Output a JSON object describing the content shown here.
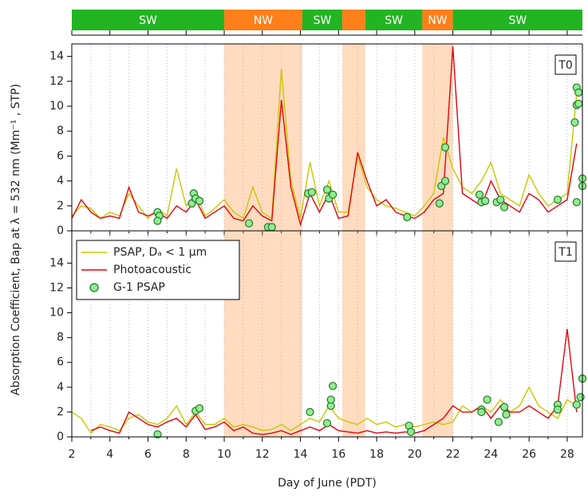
{
  "wind_sectors": {
    "segments": [
      {
        "label": "SW",
        "start": 2,
        "end": 10,
        "color": "#22b422",
        "shaded": false
      },
      {
        "label": "NW",
        "start": 10,
        "end": 14.1,
        "color": "#ff7f1a",
        "shaded": true
      },
      {
        "label": "SW",
        "start": 14.1,
        "end": 16.2,
        "color": "#22b422",
        "shaded": false
      },
      {
        "label": null,
        "start": 16.2,
        "end": 17.4,
        "color": "#ff7f1a",
        "shaded": true
      },
      {
        "label": "SW",
        "start": 17.4,
        "end": 20.4,
        "color": "#22b422",
        "shaded": false
      },
      {
        "label": "NW",
        "start": 20.4,
        "end": 22,
        "color": "#ff7f1a",
        "shaded": true
      },
      {
        "label": "SW",
        "start": 22,
        "end": 28.8,
        "color": "#22b422",
        "shaded": false
      }
    ]
  },
  "y_label": "Absorption Coefficient, Bap at λ = 532 nm (Mm⁻¹ , STP)",
  "x_label": "Day of June (PDT)",
  "chart_data": [
    {
      "type": "line",
      "label": "T0",
      "xlim": [
        2,
        28.8
      ],
      "ylim": [
        0,
        15
      ],
      "xticks": [
        2,
        4,
        6,
        8,
        10,
        12,
        14,
        16,
        18,
        20,
        22,
        24,
        26,
        28
      ],
      "xminorticks": [
        3,
        5,
        7,
        9,
        11,
        13,
        15,
        17,
        19,
        21,
        23,
        25,
        27
      ],
      "yticks": [
        0,
        2,
        4,
        6,
        8,
        10,
        12,
        14
      ],
      "x": [
        2,
        2.5,
        3,
        3.5,
        4,
        4.5,
        5,
        5.5,
        6,
        6.5,
        7,
        7.5,
        8,
        8.5,
        9,
        9.5,
        10,
        10.5,
        11,
        11.5,
        12,
        12.5,
        13,
        13.5,
        14,
        14.5,
        15,
        15.5,
        16,
        16.5,
        17,
        17.5,
        18,
        18.5,
        19,
        19.5,
        20,
        20.5,
        21,
        21.5,
        22,
        22.5,
        23,
        23.5,
        24,
        24.5,
        25,
        25.5,
        26,
        26.5,
        27,
        27.5,
        28,
        28.5
      ],
      "series": [
        {
          "type": "line",
          "color": "#c8c800",
          "values": [
            1.2,
            2.0,
            1.8,
            1.0,
            1.5,
            1.2,
            3.0,
            2.0,
            1.0,
            1.8,
            1.2,
            5.0,
            2.0,
            3.0,
            1.2,
            1.8,
            2.5,
            1.5,
            1.0,
            3.5,
            1.5,
            1.0,
            13.0,
            4.0,
            1.0,
            5.5,
            2.0,
            4.0,
            1.5,
            1.5,
            6.0,
            3.5,
            2.5,
            2.0,
            1.8,
            1.5,
            1.2,
            2.0,
            3.0,
            7.5,
            5.0,
            3.5,
            3.0,
            4.0,
            5.5,
            3.0,
            2.5,
            2.0,
            4.5,
            3.0,
            2.0,
            2.5,
            3.0,
            11.0
          ]
        },
        {
          "type": "line",
          "color": "#e8000b",
          "values": [
            1.0,
            2.5,
            1.5,
            1.0,
            1.2,
            1.0,
            3.5,
            1.5,
            1.2,
            1.5,
            1.0,
            2.0,
            1.5,
            2.5,
            1.0,
            1.5,
            2.0,
            1.0,
            0.8,
            2.0,
            1.2,
            0.8,
            10.5,
            3.5,
            0.5,
            3.0,
            1.5,
            3.0,
            1.0,
            1.2,
            6.3,
            4.0,
            2.0,
            2.5,
            1.5,
            1.2,
            1.0,
            1.5,
            2.5,
            3.0,
            14.8,
            3.0,
            2.5,
            2.0,
            4.0,
            2.5,
            2.0,
            1.5,
            3.0,
            2.5,
            1.5,
            2.0,
            2.5,
            7.0
          ]
        },
        {
          "type": "scatter",
          "color": "#90ee90",
          "x": [
            6.5,
            6.6,
            6.5,
            8.3,
            8.4,
            8.5,
            8.7,
            11.3,
            12.3,
            12.5,
            14.4,
            14.6,
            15.4,
            15.5,
            15.7,
            19.6,
            21.3,
            21.4,
            21.6,
            21.6,
            23.4,
            23.5,
            23.7,
            24.3,
            24.5,
            24.7,
            27.5,
            28.4,
            28.5,
            28.5,
            28.6,
            28.6,
            28.5,
            28.8,
            28.8
          ],
          "values": [
            1.5,
            1.2,
            0.8,
            2.2,
            3.0,
            2.6,
            2.4,
            0.6,
            0.3,
            0.3,
            3.0,
            3.1,
            3.3,
            2.6,
            2.9,
            1.1,
            2.2,
            3.6,
            6.7,
            4.0,
            2.9,
            2.3,
            2.4,
            2.3,
            2.5,
            1.9,
            2.5,
            8.7,
            10.1,
            11.5,
            11.1,
            10.2,
            2.3,
            4.2,
            3.6
          ]
        }
      ]
    },
    {
      "type": "line",
      "label": "T1",
      "xlim": [
        2,
        28.8
      ],
      "ylim": [
        0,
        16.6
      ],
      "legend": "upper left",
      "xticks": [
        2,
        4,
        6,
        8,
        10,
        12,
        14,
        16,
        18,
        20,
        22,
        24,
        26,
        28
      ],
      "xminorticks": [
        3,
        5,
        7,
        9,
        11,
        13,
        15,
        17,
        19,
        21,
        23,
        25,
        27
      ],
      "yticks": [
        0,
        2,
        4,
        6,
        8,
        10,
        12,
        14
      ],
      "x": [
        2,
        2.5,
        3,
        3.5,
        4,
        4.5,
        5,
        5.5,
        6,
        6.5,
        7,
        7.5,
        8,
        8.5,
        9,
        9.5,
        10,
        10.5,
        11,
        11.5,
        12,
        12.5,
        13,
        13.5,
        14,
        14.5,
        15,
        15.5,
        16,
        16.5,
        17,
        17.5,
        18,
        18.5,
        19,
        19.5,
        20,
        20.5,
        21,
        21.5,
        22,
        22.5,
        23,
        23.5,
        24,
        24.5,
        25,
        25.5,
        26,
        26.5,
        27,
        27.5,
        28,
        28.5
      ],
      "series": [
        {
          "type": "line",
          "name": "PSAP, Dₐ < 1 µm",
          "color": "#c8c800",
          "values": [
            2.0,
            1.5,
            0.3,
            1.0,
            0.8,
            0.5,
            1.5,
            1.8,
            1.2,
            1.0,
            1.5,
            2.5,
            1.0,
            2.0,
            1.0,
            1.0,
            1.5,
            0.8,
            1.0,
            0.8,
            0.5,
            0.6,
            1.0,
            0.5,
            1.0,
            1.5,
            1.2,
            2.5,
            1.5,
            1.2,
            1.0,
            1.5,
            1.0,
            1.2,
            0.8,
            1.0,
            0.8,
            1.0,
            1.2,
            1.0,
            1.2,
            2.5,
            2.0,
            2.5,
            2.0,
            3.0,
            2.0,
            2.5,
            4.0,
            2.5,
            2.0,
            1.5,
            3.0,
            2.5
          ]
        },
        {
          "type": "line",
          "name": "Photoacoustic",
          "color": "#e8000b",
          "values": [
            null,
            null,
            0.5,
            0.8,
            0.5,
            0.3,
            2.0,
            1.5,
            1.0,
            0.8,
            1.2,
            1.5,
            0.8,
            1.8,
            0.6,
            0.8,
            1.2,
            0.5,
            0.8,
            0.3,
            0.2,
            0.3,
            0.5,
            0.2,
            0.5,
            0.8,
            0.5,
            1.0,
            0.5,
            0.4,
            0.3,
            0.5,
            0.3,
            0.4,
            0.3,
            0.4,
            0.3,
            0.5,
            1.0,
            1.5,
            2.5,
            2.0,
            2.0,
            2.5,
            1.5,
            2.5,
            2.0,
            2.0,
            2.5,
            2.0,
            1.5,
            2.5,
            8.7,
            2.0
          ]
        },
        {
          "type": "scatter",
          "name": "G-1 PSAP",
          "color": "#90ee90",
          "x": [
            6.5,
            8.5,
            8.7,
            14.5,
            15.4,
            15.6,
            15.6,
            15.7,
            19.7,
            19.8,
            23.5,
            23.5,
            23.8,
            24.4,
            24.7,
            24.8,
            27.5,
            27.5,
            28.5,
            28.7,
            28.8
          ],
          "values": [
            0.2,
            2.1,
            2.3,
            2.0,
            1.1,
            2.5,
            3.0,
            4.1,
            0.9,
            0.4,
            2.2,
            2.0,
            3.0,
            1.2,
            2.4,
            1.8,
            2.6,
            2.2,
            2.6,
            3.2,
            4.7
          ]
        }
      ]
    }
  ]
}
